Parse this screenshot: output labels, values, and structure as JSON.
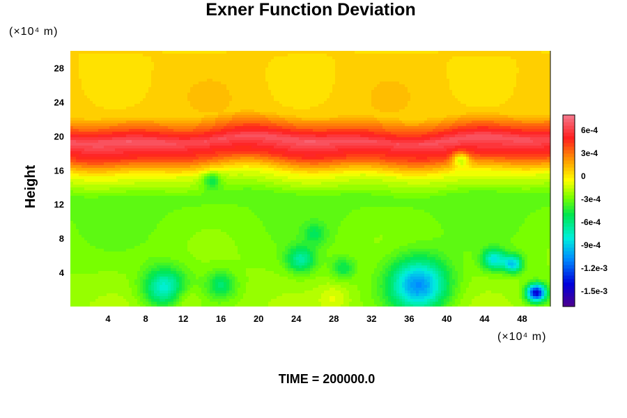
{
  "chart_data": {
    "type": "heatmap",
    "title": "Exner Function Deviation",
    "ylabel": "Height",
    "x_unit": "(×10⁴ m)",
    "y_unit": "(×10⁴ m)",
    "xlim": [
      0,
      51
    ],
    "ylim": [
      0,
      30
    ],
    "x_ticks": [
      "4",
      "8",
      "12",
      "16",
      "20",
      "24",
      "28",
      "32",
      "36",
      "40",
      "44",
      "48"
    ],
    "y_ticks": [
      "4",
      "8",
      "12",
      "16",
      "20",
      "24",
      "28"
    ],
    "colorbar": {
      "range": [
        -0.0017,
        0.0008
      ],
      "labels": [
        "6e-4",
        "3e-4",
        "0",
        "-3e-4",
        "-6e-4",
        "-9e-4",
        "-1.2e-3",
        "-1.5e-3"
      ],
      "values": [
        0.0006,
        0.0003,
        0,
        -0.0003,
        -0.0006,
        -0.0009,
        -0.0012,
        -0.0015
      ]
    },
    "field": {
      "description_levels": [
        {
          "y": 0,
          "value": -0.00022
        },
        {
          "y": 8,
          "value": -0.00028
        },
        {
          "y": 13,
          "value": -0.00032
        },
        {
          "y": 15.5,
          "value": -8e-05
        },
        {
          "y": 17.5,
          "value": 0.00042
        },
        {
          "y": 19.5,
          "value": 0.00068
        },
        {
          "y": 21,
          "value": 0.00035
        },
        {
          "y": 22.5,
          "value": 8e-05
        },
        {
          "y": 30,
          "value": 5e-05
        }
      ],
      "blobs": [
        {
          "x": 10,
          "y": 2.2,
          "amp": -0.00055,
          "r": 2.2
        },
        {
          "x": 16,
          "y": 2.5,
          "amp": -0.0003,
          "r": 1.5
        },
        {
          "x": 24.5,
          "y": 5.5,
          "amp": -0.0004,
          "r": 1.5
        },
        {
          "x": 29,
          "y": 4.5,
          "amp": -0.00025,
          "r": 1.2
        },
        {
          "x": 37,
          "y": 2.5,
          "amp": -0.0008,
          "r": 3.0
        },
        {
          "x": 45,
          "y": 5.5,
          "amp": -0.00055,
          "r": 1.2
        },
        {
          "x": 47,
          "y": 5,
          "amp": -0.00065,
          "r": 1.0
        },
        {
          "x": 49.5,
          "y": 1.6,
          "amp": -0.0012,
          "r": 1.0
        },
        {
          "x": 26,
          "y": 8.5,
          "amp": -0.0002,
          "r": 1.2
        },
        {
          "x": 41.5,
          "y": 17.3,
          "amp": -0.00045,
          "r": 0.9
        },
        {
          "x": 15,
          "y": 14.8,
          "amp": -0.0003,
          "r": 1.0
        },
        {
          "x": 12,
          "y": 1.0,
          "amp": 0.00015,
          "r": 1.6
        },
        {
          "x": 28,
          "y": 1.0,
          "amp": 0.00012,
          "r": 1.6
        }
      ]
    },
    "time_label": "TIME = 200000.0"
  }
}
